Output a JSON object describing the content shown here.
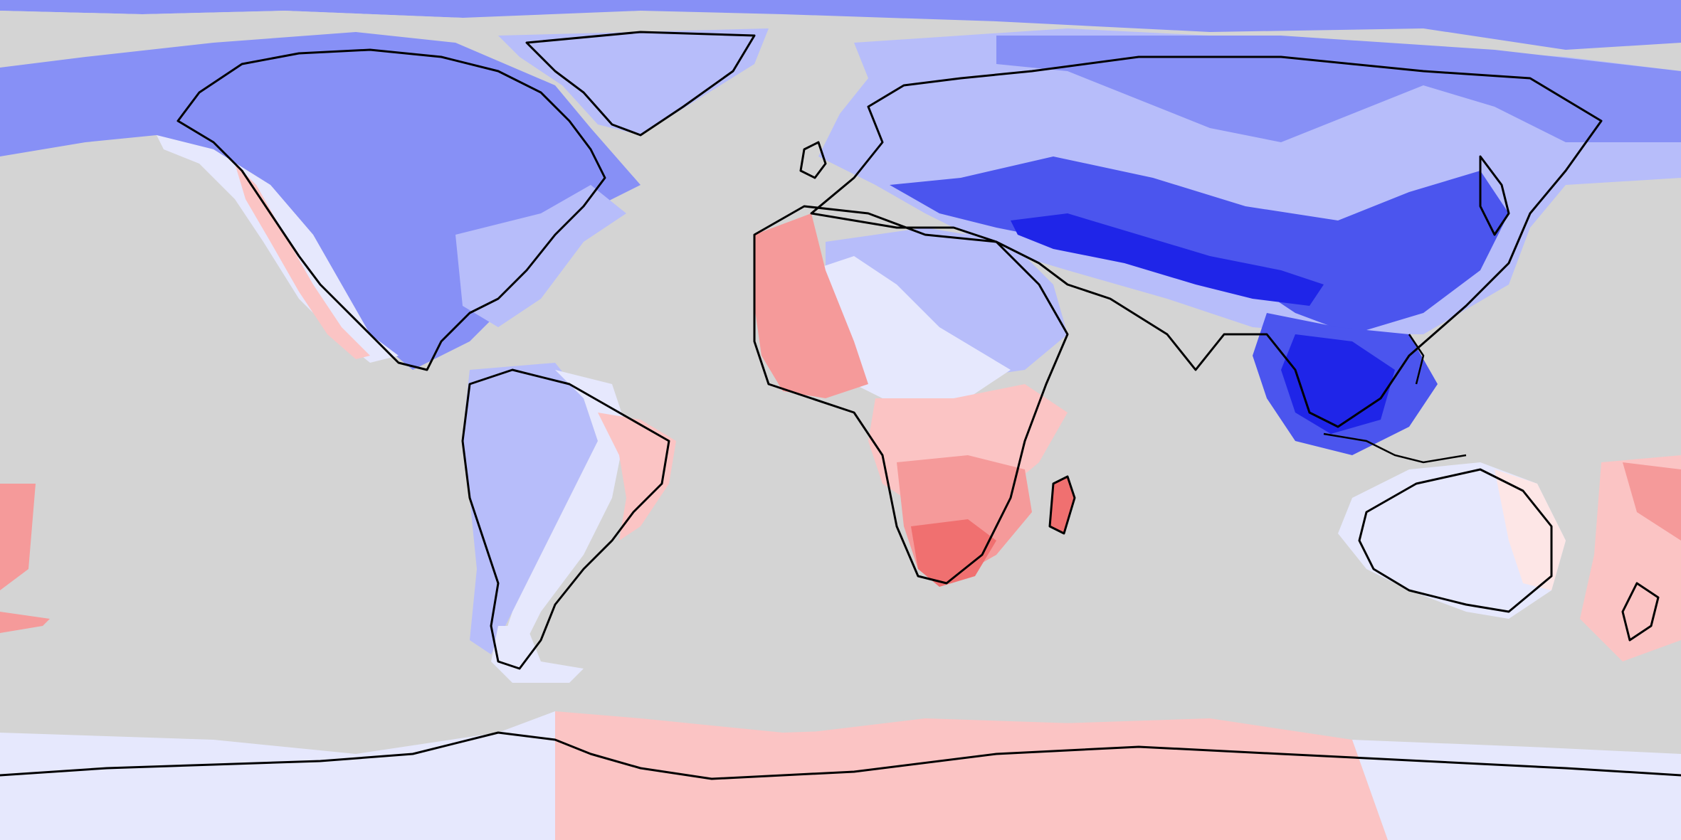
{
  "map": {
    "projection": "equirectangular",
    "ocean_mask_color": "#d4d4d4",
    "coastline_color": "#000000",
    "color_scale": {
      "blue_5": "#1f25e8",
      "blue_4": "#4b55ee",
      "blue_3": "#8790f6",
      "blue_2": "#b7bdfa",
      "blue_1": "#e6e8fd",
      "red_1": "#fde6e6",
      "red_2": "#fbc4c4",
      "red_3": "#f59a9a",
      "red_4": "#f07070"
    },
    "regions": [
      {
        "name": "arctic-band",
        "level": "blue_3"
      },
      {
        "name": "north-america",
        "level": "blue_3"
      },
      {
        "name": "greenland",
        "level": "blue_2"
      },
      {
        "name": "eurasia",
        "level": "blue_2"
      },
      {
        "name": "central-asia",
        "level": "blue_4"
      },
      {
        "name": "himalaya-core",
        "level": "blue_5"
      },
      {
        "name": "southeast-asia",
        "level": "blue_4"
      },
      {
        "name": "sahara-east",
        "level": "blue_2"
      },
      {
        "name": "west-africa",
        "level": "red_3"
      },
      {
        "name": "southern-africa",
        "level": "red_3"
      },
      {
        "name": "south-america-west",
        "level": "blue_2"
      },
      {
        "name": "brazil-east",
        "level": "red_2"
      },
      {
        "name": "australia",
        "level": "blue_1"
      },
      {
        "name": "antarctica-east",
        "level": "red_2"
      },
      {
        "name": "antarctica-west",
        "level": "blue_1"
      },
      {
        "name": "pacific-islands",
        "level": "red_2"
      }
    ]
  }
}
